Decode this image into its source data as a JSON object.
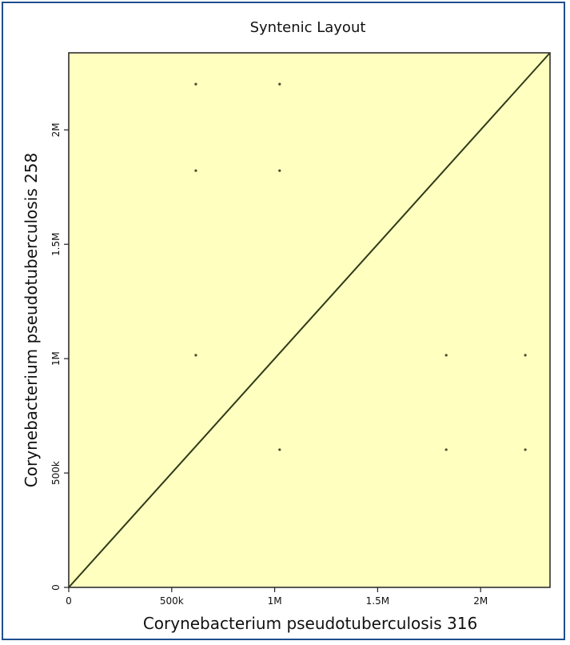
{
  "chart_data": {
    "type": "scatter",
    "title": "Syntenic Layout",
    "xlabel": "Corynebacterium pseudotuberculosis 316",
    "ylabel": "Corynebacterium pseudotuberculosis 258",
    "xlim": [
      0,
      2337000
    ],
    "ylim": [
      0,
      2337000
    ],
    "x_ticks": [
      {
        "value": 0,
        "label": "0"
      },
      {
        "value": 500000,
        "label": "500k"
      },
      {
        "value": 1000000,
        "label": "1M"
      },
      {
        "value": 1500000,
        "label": "1.5M"
      },
      {
        "value": 2000000,
        "label": "2M"
      }
    ],
    "y_ticks": [
      {
        "value": 0,
        "label": "0"
      },
      {
        "value": 500000,
        "label": "500k"
      },
      {
        "value": 1000000,
        "label": "1M"
      },
      {
        "value": 1500000,
        "label": "1.5M"
      },
      {
        "value": 2000000,
        "label": "2M"
      }
    ],
    "line": {
      "x": [
        0,
        2337000
      ],
      "y": [
        0,
        2337000
      ]
    },
    "points": [
      {
        "x": 617000,
        "y": 2200000
      },
      {
        "x": 1024000,
        "y": 2200000
      },
      {
        "x": 617000,
        "y": 1822000
      },
      {
        "x": 1024000,
        "y": 1822000
      },
      {
        "x": 617000,
        "y": 1015000
      },
      {
        "x": 1833000,
        "y": 1015000
      },
      {
        "x": 2217000,
        "y": 1015000
      },
      {
        "x": 1024000,
        "y": 602000
      },
      {
        "x": 1833000,
        "y": 602000
      },
      {
        "x": 2217000,
        "y": 602000
      }
    ],
    "grid": false,
    "colors": {
      "plot_bg": "#ffffc0",
      "line": "#2f3a17",
      "points": "#4a4a2a",
      "frame": "#1f4f8f"
    }
  }
}
